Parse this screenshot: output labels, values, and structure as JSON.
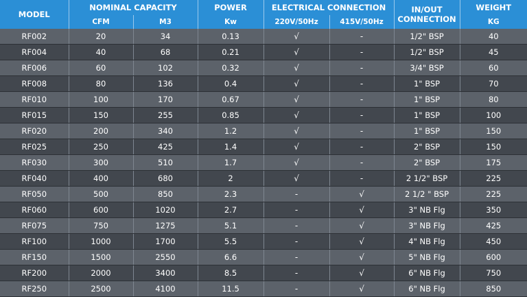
{
  "header": {
    "model": "MODEL",
    "nominal_capacity": "NOMINAL CAPACITY",
    "power": "POWER",
    "electrical_connection": "ELECTRICAL CONNECTION",
    "inout_connection": "IN/OUT CONNECTION",
    "weight": "WEIGHT",
    "cfm": "CFM",
    "m3": "M3",
    "kw": "Kw",
    "v220": "220V/50Hz",
    "v415": "415V/50Hz",
    "kg": "KG"
  },
  "rows": [
    {
      "model": "RF002",
      "cfm": "20",
      "m3": "34",
      "kw": "0.13",
      "v220": "√",
      "v415": "-",
      "conn": "1/2\" BSP",
      "kg": "40"
    },
    {
      "model": "RF004",
      "cfm": "40",
      "m3": "68",
      "kw": "0.21",
      "v220": "√",
      "v415": "-",
      "conn": "1/2\" BSP",
      "kg": "45"
    },
    {
      "model": "RF006",
      "cfm": "60",
      "m3": "102",
      "kw": "0.32",
      "v220": "√",
      "v415": "-",
      "conn": "3/4\" BSP",
      "kg": "60"
    },
    {
      "model": "RF008",
      "cfm": "80",
      "m3": "136",
      "kw": "0.4",
      "v220": "√",
      "v415": "-",
      "conn": "1\" BSP",
      "kg": "70"
    },
    {
      "model": "RF010",
      "cfm": "100",
      "m3": "170",
      "kw": "0.67",
      "v220": "√",
      "v415": "-",
      "conn": "1\" BSP",
      "kg": "80"
    },
    {
      "model": "RF015",
      "cfm": "150",
      "m3": "255",
      "kw": "0.85",
      "v220": "√",
      "v415": "-",
      "conn": "1\" BSP",
      "kg": "100"
    },
    {
      "model": "RF020",
      "cfm": "200",
      "m3": "340",
      "kw": "1.2",
      "v220": "√",
      "v415": "-",
      "conn": "1\" BSP",
      "kg": "150"
    },
    {
      "model": "RF025",
      "cfm": "250",
      "m3": "425",
      "kw": "1.4",
      "v220": "√",
      "v415": "-",
      "conn": "2\" BSP",
      "kg": "150"
    },
    {
      "model": "RF030",
      "cfm": "300",
      "m3": "510",
      "kw": "1.7",
      "v220": "√",
      "v415": "-",
      "conn": "2\" BSP",
      "kg": "175"
    },
    {
      "model": "RF040",
      "cfm": "400",
      "m3": "680",
      "kw": "2",
      "v220": "√",
      "v415": "-",
      "conn": "2 1/2\" BSP",
      "kg": "225"
    },
    {
      "model": "RF050",
      "cfm": "500",
      "m3": "850",
      "kw": "2.3",
      "v220": "-",
      "v415": "√",
      "conn": "2 1/2 \" BSP",
      "kg": "225"
    },
    {
      "model": "RF060",
      "cfm": "600",
      "m3": "1020",
      "kw": "2.7",
      "v220": "-",
      "v415": "√",
      "conn": "3\" NB Flg",
      "kg": "350"
    },
    {
      "model": "RF075",
      "cfm": "750",
      "m3": "1275",
      "kw": "5.1",
      "v220": "-",
      "v415": "√",
      "conn": "3\"  NB Flg",
      "kg": "425"
    },
    {
      "model": "RF100",
      "cfm": "1000",
      "m3": "1700",
      "kw": "5.5",
      "v220": "-",
      "v415": "√",
      "conn": "4\"  NB Flg",
      "kg": "450"
    },
    {
      "model": "RF150",
      "cfm": "1500",
      "m3": "2550",
      "kw": "6.6",
      "v220": "-",
      "v415": "√",
      "conn": "5\"  NB Flg",
      "kg": "600"
    },
    {
      "model": "RF200",
      "cfm": "2000",
      "m3": "3400",
      "kw": "8.5",
      "v220": "-",
      "v415": "√",
      "conn": "6\"  NB Flg",
      "kg": "750"
    },
    {
      "model": "RF250",
      "cfm": "2500",
      "m3": "4100",
      "kw": "11.5",
      "v220": "-",
      "v415": "√",
      "conn": "6\"  NB Flg",
      "kg": "850"
    }
  ],
  "colors": {
    "header_bg": "#2b8fd6",
    "row_light": "#5c626a",
    "row_dark": "#42474e",
    "text": "#ffffff"
  }
}
